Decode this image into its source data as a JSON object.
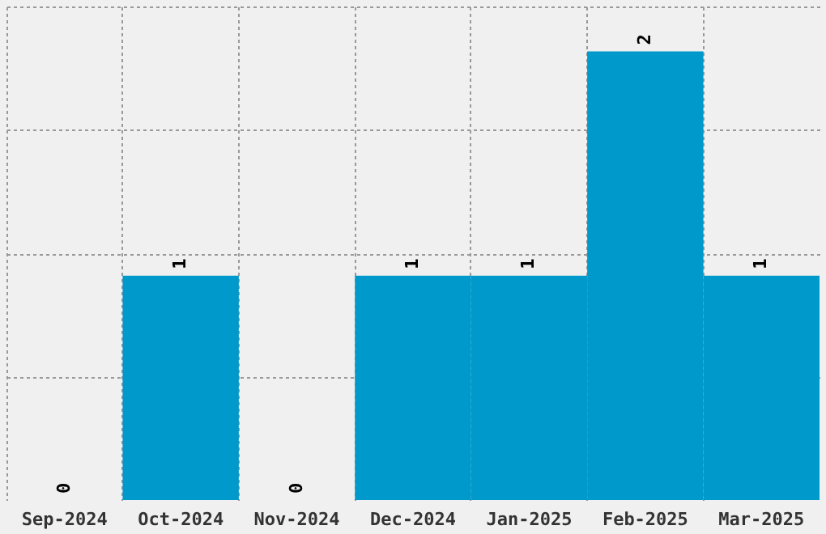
{
  "chart_data": {
    "type": "bar",
    "categories": [
      "Sep-2024",
      "Oct-2024",
      "Nov-2024",
      "Dec-2024",
      "Jan-2025",
      "Feb-2025",
      "Mar-2025"
    ],
    "values": [
      0,
      1,
      0,
      1,
      1,
      2,
      1
    ],
    "color": "#0099cc",
    "ylim": [
      0,
      2.2
    ],
    "yticks": [
      {
        "value": 0.55,
        "label": null
      },
      {
        "value": 1.1,
        "label": null
      },
      {
        "value": 1.65,
        "label": null
      },
      {
        "value": 2.2,
        "label": null
      }
    ],
    "tick_labels": "x",
    "grid": true,
    "data_labels": true
  }
}
